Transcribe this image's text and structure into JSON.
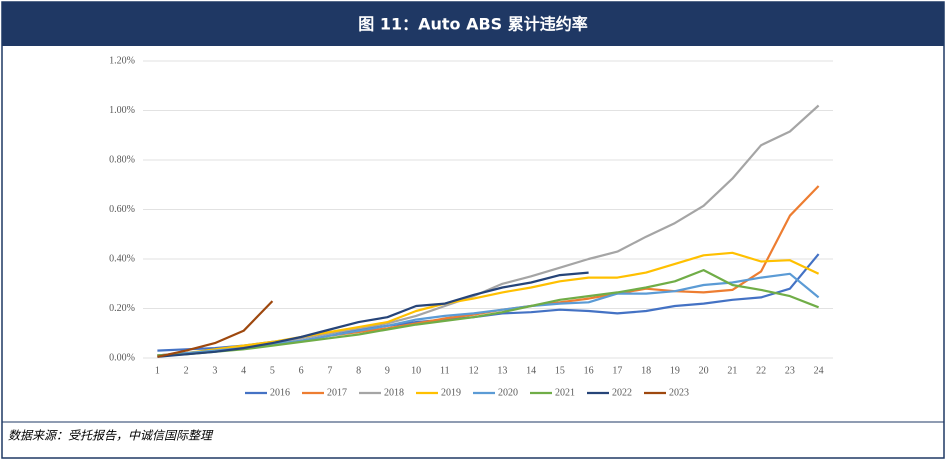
{
  "chart_data": {
    "type": "line",
    "title": "图 11：Auto ABS 累计违约率",
    "source": "数据来源：受托报告，中诚信国际整理",
    "categories": [
      1,
      2,
      3,
      4,
      5,
      6,
      7,
      8,
      9,
      10,
      11,
      12,
      13,
      14,
      15,
      16,
      17,
      18,
      19,
      20,
      21,
      22,
      23,
      24
    ],
    "ylim": [
      0,
      1.2
    ],
    "yticks": [
      {
        "value": 0,
        "label": "0.00%"
      },
      {
        "value": 0.2,
        "label": "0.20%"
      },
      {
        "value": 0.4,
        "label": "0.40%"
      },
      {
        "value": 0.6,
        "label": "0.60%"
      },
      {
        "value": 0.8,
        "label": "0.80%"
      },
      {
        "value": 1.0,
        "label": "1.00%"
      },
      {
        "value": 1.2,
        "label": "1.20%"
      }
    ],
    "grid": true,
    "legend": "bottom",
    "series": [
      {
        "name": "2016",
        "color": "#4472c4",
        "values": [
          0.03,
          0.035,
          0.04,
          0.05,
          0.065,
          0.08,
          0.1,
          0.115,
          0.13,
          0.145,
          0.155,
          0.165,
          0.18,
          0.185,
          0.195,
          0.19,
          0.18,
          0.19,
          0.21,
          0.22,
          0.235,
          0.245,
          0.28,
          0.42
        ]
      },
      {
        "name": "2017",
        "color": "#ed7d31",
        "values": [
          0.01,
          0.02,
          0.03,
          0.04,
          0.055,
          0.07,
          0.09,
          0.105,
          0.12,
          0.14,
          0.16,
          0.175,
          0.195,
          0.21,
          0.225,
          0.24,
          0.26,
          0.28,
          0.27,
          0.265,
          0.275,
          0.35,
          0.575,
          0.695
        ]
      },
      {
        "name": "2018",
        "color": "#a5a5a5",
        "values": [
          0.01,
          0.02,
          0.03,
          0.045,
          0.06,
          0.08,
          0.1,
          0.12,
          0.14,
          0.17,
          0.21,
          0.25,
          0.3,
          0.33,
          0.365,
          0.4,
          0.43,
          0.49,
          0.545,
          0.615,
          0.725,
          0.86,
          0.915,
          1.02
        ]
      },
      {
        "name": "2019",
        "color": "#ffc000",
        "values": [
          0.01,
          0.02,
          0.035,
          0.05,
          0.065,
          0.085,
          0.105,
          0.125,
          0.145,
          0.19,
          0.22,
          0.24,
          0.265,
          0.285,
          0.31,
          0.325,
          0.325,
          0.345,
          0.38,
          0.415,
          0.425,
          0.39,
          0.395,
          0.34
        ]
      },
      {
        "name": "2020",
        "color": "#5b9bd5",
        "values": [
          0.01,
          0.02,
          0.03,
          0.04,
          0.055,
          0.07,
          0.09,
          0.11,
          0.13,
          0.155,
          0.17,
          0.18,
          0.195,
          0.21,
          0.22,
          0.225,
          0.26,
          0.26,
          0.27,
          0.295,
          0.305,
          0.325,
          0.34,
          0.245
        ]
      },
      {
        "name": "2021",
        "color": "#70ad47",
        "values": [
          0.01,
          0.015,
          0.025,
          0.035,
          0.05,
          0.065,
          0.08,
          0.095,
          0.115,
          0.135,
          0.15,
          0.165,
          0.185,
          0.21,
          0.235,
          0.25,
          0.265,
          0.285,
          0.31,
          0.355,
          0.295,
          0.275,
          0.25,
          0.205
        ]
      },
      {
        "name": "2022",
        "color": "#264478",
        "values": [
          0.005,
          0.015,
          0.025,
          0.04,
          0.06,
          0.085,
          0.115,
          0.145,
          0.165,
          0.21,
          0.22,
          0.255,
          0.285,
          0.305,
          0.335,
          0.345,
          null,
          null,
          null,
          null,
          null,
          null,
          null,
          null
        ]
      },
      {
        "name": "2023",
        "color": "#9e480e",
        "values": [
          0.005,
          0.03,
          0.06,
          0.11,
          0.23,
          null,
          null,
          null,
          null,
          null,
          null,
          null,
          null,
          null,
          null,
          null,
          null,
          null,
          null,
          null,
          null,
          null,
          null,
          null
        ]
      }
    ]
  }
}
